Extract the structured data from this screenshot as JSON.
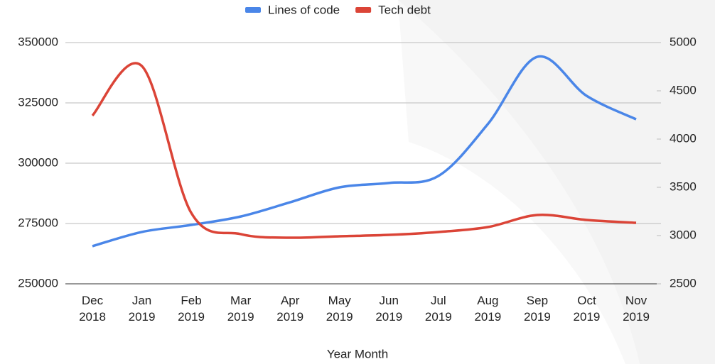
{
  "chart_data": {
    "type": "line",
    "x_label": "Year Month",
    "categories": [
      "Dec 2018",
      "Jan 2019",
      "Feb 2019",
      "Mar 2019",
      "Apr 2019",
      "May 2019",
      "Jun 2019",
      "Jul 2019",
      "Aug 2019",
      "Sep 2019",
      "Oct 2019",
      "Nov 2019"
    ],
    "series": [
      {
        "name": "Lines of code",
        "color": "#4a86e8",
        "values": [
          265600,
          271500,
          274400,
          277900,
          283800,
          290000,
          291800,
          294700,
          316200,
          344100,
          327900,
          318200
        ]
      },
      {
        "name": "Tech debt",
        "color": "#db4437",
        "axis": "y2",
        "values": [
          4243,
          4757,
          3235,
          3015,
          2978,
          2993,
          3007,
          3037,
          3088,
          3213,
          3162,
          3132
        ]
      }
    ],
    "ylim": [
      250000,
      350000
    ],
    "yticks": [
      250000,
      275000,
      300000,
      325000,
      350000
    ],
    "y2lim": [
      2500,
      5000
    ],
    "y2ticks": [
      2500,
      3000,
      3500,
      4000,
      4500,
      5000
    ],
    "grid": true,
    "legend": "top"
  }
}
